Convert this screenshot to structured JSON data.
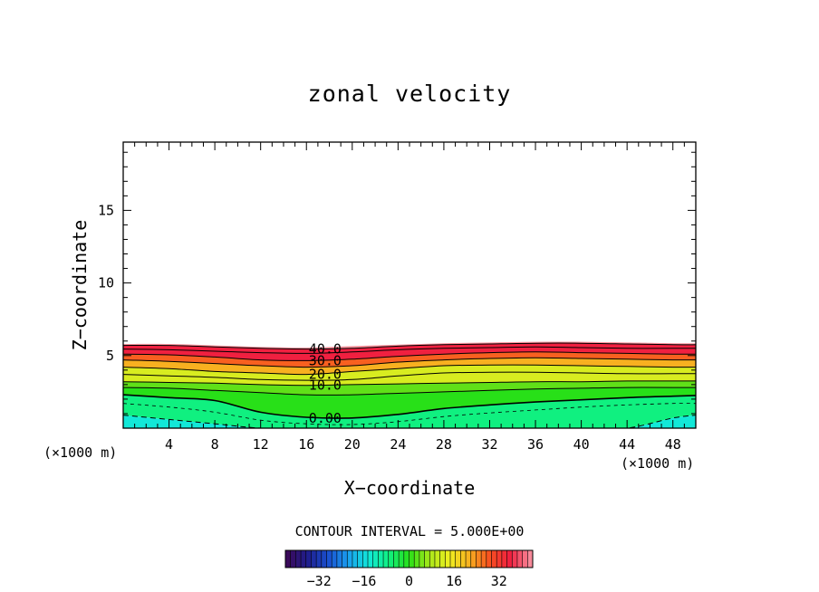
{
  "chart_data": {
    "type": "contour",
    "title": "zonal velocity",
    "xlabel": "X−coordinate",
    "ylabel": "Z−coordinate",
    "x_unit_left": "(×1000 m)",
    "x_unit_right": "(×1000 m)",
    "xlim": [
      0,
      50
    ],
    "ylim": [
      0,
      19.7
    ],
    "x_ticks": [
      4,
      8,
      12,
      16,
      20,
      24,
      28,
      32,
      36,
      40,
      44,
      48
    ],
    "y_ticks": [
      5,
      10,
      15
    ],
    "contour_interval": "CONTOUR INTERVAL = 5.000E+00",
    "x_samples": [
      0,
      4,
      8,
      12,
      16,
      20,
      24,
      28,
      32,
      36,
      40,
      44,
      48,
      50
    ],
    "contours": [
      {
        "level": -5,
        "style": "dashed",
        "heights": [
          0.9,
          0.6,
          0.3,
          0.0,
          0.0,
          0.0,
          0.0,
          0.0,
          0.0,
          0.0,
          0.0,
          0.0,
          0.7,
          0.9
        ]
      },
      {
        "level": 0,
        "label": "0.00",
        "style": "solid",
        "heights": [
          2.3,
          2.1,
          1.9,
          1.1,
          0.75,
          0.7,
          0.95,
          1.35,
          1.6,
          1.8,
          1.95,
          2.1,
          2.2,
          2.25
        ]
      },
      {
        "level": 5,
        "style": "solid",
        "heights": [
          2.8,
          2.75,
          2.6,
          2.45,
          2.3,
          2.3,
          2.4,
          2.5,
          2.6,
          2.7,
          2.75,
          2.8,
          2.8,
          2.8
        ]
      },
      {
        "level": 10,
        "label": "10.0",
        "style": "solid",
        "heights": [
          3.2,
          3.15,
          3.1,
          3.0,
          2.95,
          3.0,
          3.05,
          3.1,
          3.15,
          3.2,
          3.2,
          3.25,
          3.25,
          3.25
        ]
      },
      {
        "level": 15,
        "style": "solid",
        "heights": [
          3.7,
          3.6,
          3.5,
          3.35,
          3.3,
          3.35,
          3.6,
          3.8,
          3.85,
          3.85,
          3.8,
          3.75,
          3.75,
          3.75
        ]
      },
      {
        "level": 20,
        "label": "20.0",
        "style": "solid",
        "heights": [
          4.2,
          4.1,
          3.9,
          3.8,
          3.7,
          3.9,
          4.1,
          4.3,
          4.35,
          4.35,
          4.3,
          4.25,
          4.2,
          4.2
        ]
      },
      {
        "level": 25,
        "style": "solid",
        "heights": [
          4.7,
          4.6,
          4.45,
          4.3,
          4.2,
          4.3,
          4.55,
          4.7,
          4.8,
          4.85,
          4.8,
          4.75,
          4.7,
          4.7
        ]
      },
      {
        "level": 30,
        "label": "30.0",
        "style": "solid",
        "heights": [
          5.1,
          5.05,
          4.9,
          4.7,
          4.65,
          4.75,
          4.95,
          5.1,
          5.2,
          5.25,
          5.2,
          5.15,
          5.1,
          5.1
        ]
      },
      {
        "level": 35,
        "style": "solid",
        "heights": [
          5.45,
          5.4,
          5.3,
          5.2,
          5.15,
          5.25,
          5.4,
          5.5,
          5.55,
          5.6,
          5.55,
          5.5,
          5.5,
          5.5
        ]
      },
      {
        "level": 40,
        "label": "40.0",
        "style": "solid",
        "heights": [
          5.7,
          5.7,
          5.6,
          5.5,
          5.45,
          5.5,
          5.65,
          5.75,
          5.8,
          5.85,
          5.85,
          5.8,
          5.75,
          5.75
        ]
      }
    ],
    "fill_top": [
      5.8,
      5.8,
      5.7,
      5.6,
      5.55,
      5.65,
      5.75,
      5.85,
      5.9,
      5.95,
      5.95,
      5.9,
      5.85,
      5.85
    ],
    "colorbar": {
      "ticks": [
        "−32",
        "−16",
        "0",
        "16",
        "32"
      ],
      "tick_values": [
        -32,
        -16,
        0,
        16,
        32
      ],
      "range": [
        -44,
        44
      ],
      "colors": [
        "#3a0a5a",
        "#1f1f8f",
        "#1a50d0",
        "#1aa0f0",
        "#12e8d8",
        "#10f080",
        "#28e018",
        "#a8e81a",
        "#f0f020",
        "#f8b020",
        "#f85020",
        "#f02040",
        "#f88a9a"
      ]
    },
    "fill_colors": {
      "neg_low": "#12e8d8",
      "neg_high": "#10f080",
      "zero": "#28e018",
      "low": "#60e018",
      "mid": "#d8ec20",
      "warm": "#f8b020",
      "orange": "#f86020",
      "red": "#f02040",
      "pink": "#f8909a"
    }
  }
}
